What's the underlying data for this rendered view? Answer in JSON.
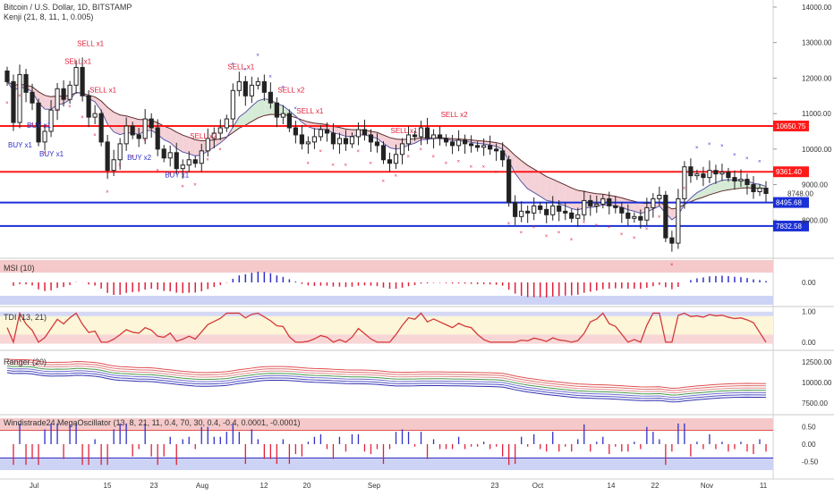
{
  "header": {
    "symbol_title": "Bitcoin / U.S. Dollar, 1D, BITSTAMP",
    "indicator_title": "Kenji (21, 8, 11, 1, 0.005)"
  },
  "colors": {
    "up": "#2b2b2b",
    "down": "#2b2b2b",
    "resistance": "#ff1a1a",
    "support": "#1a2fd6",
    "sell": "#e0203a",
    "buy": "#3030c8",
    "band_upper": "#f2c9cf",
    "band_lower": "#cfe8cf"
  },
  "chart_data": [
    {
      "panel": "price",
      "type": "candlestick",
      "title": "Bitcoin / U.S. Dollar, 1D, BITSTAMP",
      "x_ticks": [
        "Jul",
        "15",
        "23",
        "Aug",
        "12",
        "20",
        "Sep",
        "23",
        "Oct",
        "14",
        "22",
        "Nov",
        "11"
      ],
      "y_ticks": [
        "14000.00",
        "13000.00",
        "12000.00",
        "11000.00",
        "10000.00",
        "9000.00",
        "8000.00",
        "7000.00"
      ],
      "ylim": [
        7000,
        14200
      ],
      "horizontal_levels": [
        {
          "value": 10650.75,
          "label": "10650.75",
          "color": "#ff1a1a"
        },
        {
          "value": 9361.4,
          "label": "9361.40",
          "color": "#ff1a1a"
        },
        {
          "value": 8495.68,
          "label": "8495.68",
          "color": "#1a2fd6"
        },
        {
          "value": 7832.58,
          "label": "7832.58",
          "color": "#1a2fd6"
        }
      ],
      "last_price": {
        "value": 8748.0,
        "label": "8748.00"
      },
      "close": [
        11900,
        10750,
        12100,
        11600,
        11300,
        10200,
        10500,
        11100,
        11700,
        11400,
        11800,
        12300,
        11500,
        10900,
        11000,
        10200,
        9400,
        9700,
        10150,
        10650,
        10400,
        10300,
        10850,
        10600,
        10000,
        9750,
        9900,
        9450,
        9550,
        9700,
        9600,
        9950,
        10300,
        10450,
        10600,
        10850,
        11650,
        11900,
        11500,
        11800,
        11900,
        11600,
        11300,
        10900,
        11000,
        10600,
        10400,
        10150,
        10200,
        10350,
        10550,
        10450,
        10150,
        10300,
        10150,
        10350,
        10550,
        10400,
        10200,
        10100,
        9700,
        9600,
        9850,
        10150,
        10400,
        10350,
        10600,
        10300,
        10400,
        10300,
        10200,
        10100,
        10250,
        10150,
        10100,
        10050,
        10100,
        10000,
        9950,
        9700,
        8500,
        8100,
        8250,
        8200,
        8400,
        8300,
        8150,
        8400,
        8250,
        8200,
        8050,
        8150,
        8550,
        8400,
        8450,
        8600,
        8400,
        8350,
        8200,
        8050,
        8100,
        8000,
        8350,
        8600,
        8700,
        7500,
        7350,
        8600,
        9500,
        9250,
        9300,
        9200,
        9400,
        9300,
        9350,
        9200,
        9100,
        9150,
        9000,
        8800,
        8900,
        8750
      ],
      "annotations": [
        "SELL x1",
        "SELL x1",
        "SELL x1",
        "SELL x2",
        "SELL x1",
        "SELL x2",
        "SELL x1",
        "SELL x1",
        "SELL x2",
        "BUY x1",
        "BUY x1",
        "BUY x1",
        "BUY x2",
        "BUY x1"
      ]
    },
    {
      "panel": "msi",
      "type": "bar",
      "title": "MSI (10)",
      "y_ticks": [
        "0.00"
      ]
    },
    {
      "panel": "tdi",
      "type": "line",
      "title": "TDI (13, 21)",
      "y_ticks": [
        "1.00",
        "0.00"
      ],
      "ylim": [
        -0.15,
        1.05
      ]
    },
    {
      "panel": "ranger",
      "type": "line",
      "title": "Ranger (20)",
      "y_ticks": [
        "12500.00",
        "10000.00",
        "7500.00"
      ],
      "ylim": [
        6500,
        13500
      ]
    },
    {
      "panel": "mega",
      "type": "bar",
      "title": "Windistrade24 MegaOscillator (13, 8, 21, 11, 0.4, 70, 30, 0.4, -0.4, 0.0001, -0.0001)",
      "y_ticks": [
        "0.50",
        "0.00",
        "-0.50"
      ],
      "ylim": [
        -0.75,
        0.75
      ],
      "thresholds": [
        0.4,
        -0.4
      ]
    }
  ]
}
